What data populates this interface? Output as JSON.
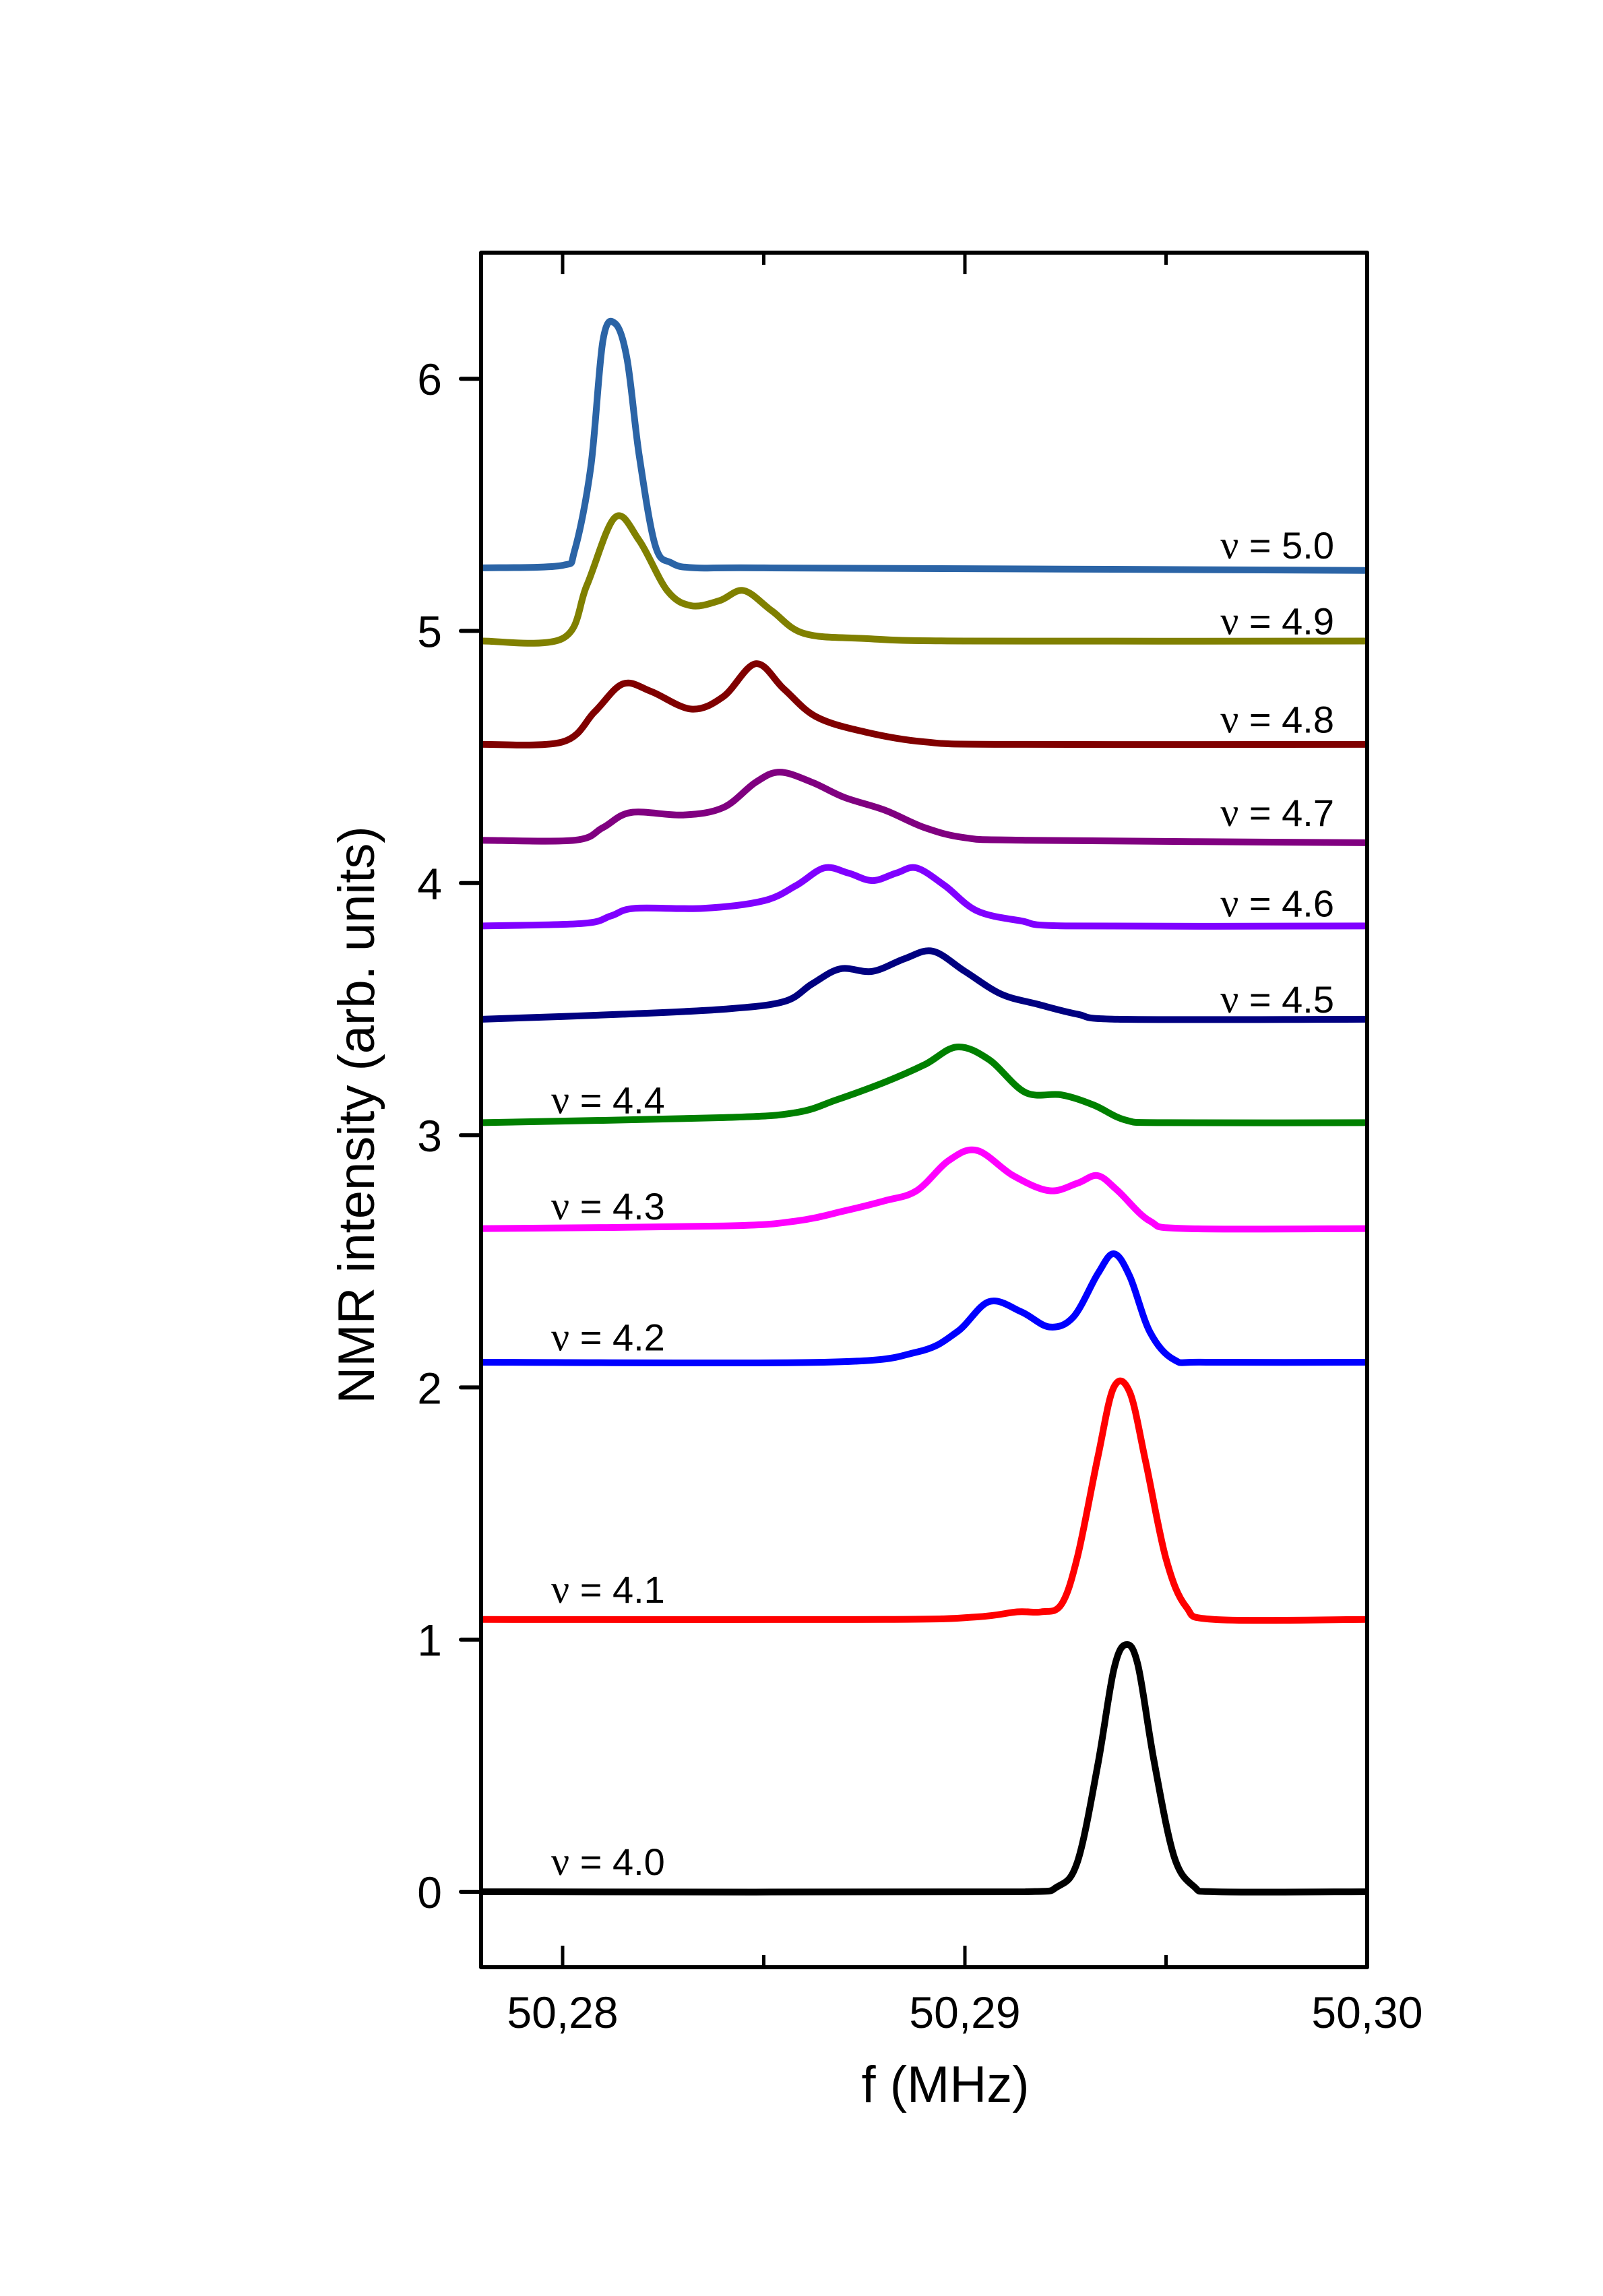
{
  "chart_data": {
    "type": "line",
    "title": "",
    "xlabel": "f (MHz)",
    "ylabel": "NMR intensity (arb. units)",
    "xlim": [
      50.278,
      50.3
    ],
    "ylim": [
      -0.3,
      6.5
    ],
    "x_ticks": [
      {
        "value": 50.28,
        "label": "50,28",
        "major": true
      },
      {
        "value": 50.285,
        "label": "",
        "major": false
      },
      {
        "value": 50.29,
        "label": "50,29",
        "major": true
      },
      {
        "value": 50.295,
        "label": "",
        "major": false
      },
      {
        "value": 50.3,
        "label": "50,30",
        "major": true
      }
    ],
    "y_ticks": [
      {
        "value": 0,
        "label": "0"
      },
      {
        "value": 1,
        "label": "1"
      },
      {
        "value": 2,
        "label": "2"
      },
      {
        "value": 3,
        "label": "3"
      },
      {
        "value": 4,
        "label": "4"
      },
      {
        "value": 5,
        "label": "5"
      },
      {
        "value": 6,
        "label": "6"
      }
    ],
    "grid": false,
    "legend": "inline labels next to each trace",
    "series": [
      {
        "name": "ν = 4.0",
        "nu_symbol": "ν",
        "nu_text": " = 4.0",
        "color": "#000000",
        "label_side": "left",
        "label_y": 0.12,
        "x": [
          50.278,
          50.2915,
          50.2923,
          50.2928,
          50.2933,
          50.2937,
          50.294,
          50.2943,
          50.2947,
          50.2952,
          50.2957,
          50.2962,
          50.3
        ],
        "y": [
          0.0,
          0.0,
          0.02,
          0.12,
          0.5,
          0.88,
          0.98,
          0.9,
          0.52,
          0.14,
          0.02,
          0.0,
          0.0
        ]
      },
      {
        "name": "ν = 4.1",
        "nu_symbol": "ν",
        "nu_text": " = 4.1",
        "color": "#ff0000",
        "label_side": "left",
        "label_y": 1.2,
        "x": [
          50.278,
          50.288,
          50.2903,
          50.2913,
          50.2919,
          50.2924,
          50.2928,
          50.2933,
          50.2937,
          50.2941,
          50.2945,
          50.295,
          50.2955,
          50.2962,
          50.3
        ],
        "y": [
          1.08,
          1.08,
          1.09,
          1.11,
          1.11,
          1.14,
          1.33,
          1.72,
          2.0,
          1.98,
          1.7,
          1.32,
          1.13,
          1.08,
          1.08
        ]
      },
      {
        "name": "ν = 4.2",
        "nu_symbol": "ν",
        "nu_text": " = 4.2",
        "color": "#0000ff",
        "label_side": "left",
        "label_y": 2.2,
        "x": [
          50.278,
          50.2865,
          50.2888,
          50.2898,
          50.2906,
          50.2914,
          50.2921,
          50.2927,
          50.2933,
          50.2937,
          50.2941,
          50.2946,
          50.2952,
          50.296,
          50.3
        ],
        "y": [
          2.1,
          2.1,
          2.14,
          2.22,
          2.34,
          2.3,
          2.24,
          2.28,
          2.45,
          2.53,
          2.44,
          2.22,
          2.11,
          2.1,
          2.1
        ]
      },
      {
        "name": "ν = 4.3",
        "nu_symbol": "ν",
        "nu_text": " = 4.3",
        "color": "#ff00ff",
        "label_side": "left",
        "label_y": 2.72,
        "x": [
          50.278,
          50.284,
          50.2858,
          50.287,
          50.288,
          50.2888,
          50.2896,
          50.2903,
          50.2912,
          50.2921,
          50.2928,
          50.2933,
          50.2938,
          50.2946,
          50.2955,
          50.3
        ],
        "y": [
          2.63,
          2.64,
          2.66,
          2.7,
          2.74,
          2.78,
          2.9,
          2.94,
          2.84,
          2.78,
          2.81,
          2.84,
          2.78,
          2.66,
          2.63,
          2.63
        ]
      },
      {
        "name": "ν = 4.4",
        "nu_symbol": "ν",
        "nu_text": " = 4.4",
        "color": "#008000",
        "label_side": "left",
        "label_y": 3.14,
        "x": [
          50.278,
          50.284,
          50.2858,
          50.2868,
          50.288,
          50.289,
          50.2898,
          50.2906,
          50.2915,
          50.2924,
          50.2932,
          50.294,
          50.295,
          50.3
        ],
        "y": [
          3.05,
          3.07,
          3.09,
          3.14,
          3.21,
          3.28,
          3.35,
          3.3,
          3.17,
          3.16,
          3.12,
          3.06,
          3.05,
          3.05
        ]
      },
      {
        "name": "ν = 4.5",
        "nu_symbol": "ν",
        "nu_text": " = 4.5",
        "color": "#000080",
        "label_side": "right",
        "label_y": 3.54,
        "x": [
          50.278,
          50.2815,
          50.284,
          50.2855,
          50.2862,
          50.2869,
          50.2877,
          50.2885,
          50.2892,
          50.29,
          50.2909,
          50.2918,
          50.2928,
          50.2938,
          50.3
        ],
        "y": [
          3.46,
          3.48,
          3.5,
          3.53,
          3.6,
          3.66,
          3.65,
          3.7,
          3.73,
          3.65,
          3.56,
          3.52,
          3.48,
          3.46,
          3.46
        ]
      },
      {
        "name": "ν = 4.6",
        "nu_symbol": "ν",
        "nu_text": " = 4.6",
        "color": "#8000ff",
        "label_side": "right",
        "label_y": 3.92,
        "x": [
          50.278,
          50.2805,
          50.2812,
          50.2818,
          50.2835,
          50.285,
          50.2858,
          50.2865,
          50.2871,
          50.2877,
          50.2883,
          50.2888,
          50.2895,
          50.2903,
          50.2914,
          50.2925,
          50.3
        ],
        "y": [
          3.83,
          3.84,
          3.87,
          3.9,
          3.9,
          3.93,
          3.99,
          4.06,
          4.04,
          4.01,
          4.04,
          4.06,
          3.99,
          3.89,
          3.85,
          3.83,
          3.83
        ]
      },
      {
        "name": "ν = 4.7",
        "nu_symbol": "ν",
        "nu_text": " = 4.7",
        "color": "#800080",
        "label_side": "right",
        "label_y": 4.28,
        "x": [
          50.278,
          50.2803,
          50.281,
          50.2817,
          50.283,
          50.284,
          50.2848,
          50.2854,
          50.2862,
          50.287,
          50.288,
          50.289,
          50.29,
          50.2915,
          50.3
        ],
        "y": [
          4.17,
          4.17,
          4.22,
          4.28,
          4.27,
          4.3,
          4.4,
          4.44,
          4.4,
          4.34,
          4.29,
          4.22,
          4.18,
          4.17,
          4.16
        ]
      },
      {
        "name": "ν = 4.8",
        "nu_symbol": "ν",
        "nu_text": " = 4.8",
        "color": "#800000",
        "label_side": "right",
        "label_y": 4.65,
        "x": [
          50.278,
          50.28,
          50.2808,
          50.2815,
          50.2822,
          50.2832,
          50.284,
          50.2848,
          50.2855,
          50.2863,
          50.2875,
          50.289,
          50.291,
          50.3
        ],
        "y": [
          4.55,
          4.56,
          4.68,
          4.79,
          4.76,
          4.69,
          4.74,
          4.87,
          4.77,
          4.66,
          4.6,
          4.56,
          4.55,
          4.55
        ]
      },
      {
        "name": "ν = 4.9",
        "nu_symbol": "ν",
        "nu_text": " = 4.9",
        "color": "#808000",
        "label_side": "right",
        "label_y": 5.04,
        "x": [
          50.278,
          50.28,
          50.2806,
          50.2813,
          50.2819,
          50.2826,
          50.2832,
          50.2839,
          50.2845,
          50.2852,
          50.286,
          50.2875,
          50.29,
          50.3
        ],
        "y": [
          4.96,
          4.97,
          5.18,
          5.45,
          5.36,
          5.16,
          5.1,
          5.12,
          5.16,
          5.08,
          4.99,
          4.97,
          4.96,
          4.96
        ]
      },
      {
        "name": "ν = 5.0",
        "nu_symbol": "ν",
        "nu_text": " = 5.0",
        "color": "#2b64a6",
        "label_side": "right",
        "label_y": 5.34,
        "x": [
          50.278,
          50.28,
          50.2803,
          50.2807,
          50.281,
          50.2813,
          50.2816,
          50.2819,
          50.2823,
          50.2827,
          50.2833,
          50.285,
          50.3
        ],
        "y": [
          5.25,
          5.26,
          5.32,
          5.65,
          6.15,
          6.22,
          6.08,
          5.7,
          5.34,
          5.27,
          5.25,
          5.25,
          5.24
        ]
      }
    ]
  }
}
